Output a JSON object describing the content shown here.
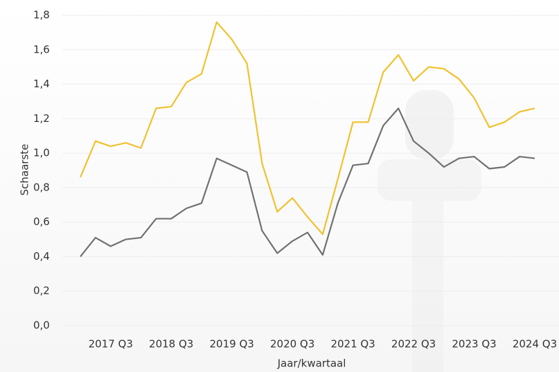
{
  "chart_data": {
    "type": "line",
    "ylabel": "Schaarste",
    "xlabel": "Jaar/kwartaal",
    "categories": [
      null,
      null,
      "2017 Q3",
      null,
      null,
      null,
      "2018 Q3",
      null,
      null,
      null,
      "2019 Q3",
      null,
      null,
      null,
      "2020 Q3",
      null,
      null,
      null,
      "2021 Q3",
      null,
      null,
      null,
      "2022 Q3",
      null,
      null,
      null,
      "2023 Q3",
      null,
      null,
      null,
      "2024 Q3"
    ],
    "series": [
      {
        "color": "#f2c12e",
        "values": [
          0.86,
          1.07,
          1.04,
          1.06,
          1.03,
          1.26,
          1.27,
          1.41,
          1.46,
          1.76,
          1.66,
          1.52,
          0.94,
          0.66,
          0.74,
          0.63,
          0.53,
          0.85,
          1.18,
          1.18,
          1.47,
          1.57,
          1.42,
          1.5,
          1.49,
          1.43,
          1.32,
          1.15,
          1.18,
          1.24,
          1.26
        ]
      },
      {
        "color": "#707070",
        "values": [
          0.4,
          0.51,
          0.46,
          0.5,
          0.51,
          0.62,
          0.62,
          0.68,
          0.71,
          0.97,
          0.93,
          0.89,
          0.55,
          0.42,
          0.49,
          0.54,
          0.41,
          0.71,
          0.93,
          0.94,
          1.16,
          1.26,
          1.07,
          1.0,
          0.92,
          0.97,
          0.98,
          0.91,
          0.92,
          0.98,
          0.97
        ]
      }
    ],
    "ylim": [
      0,
      1.8
    ],
    "yticks": [
      {
        "value": 0,
        "label": "0,0"
      },
      {
        "value": 0.2,
        "label": "0,2"
      },
      {
        "value": 0.4,
        "label": "0,4"
      },
      {
        "value": 0.6,
        "label": "0,6"
      },
      {
        "value": 0.8,
        "label": "0,8"
      },
      {
        "value": 1.0,
        "label": "1,0"
      },
      {
        "value": 1.2,
        "label": "1,2"
      },
      {
        "value": 1.4,
        "label": "1,4"
      },
      {
        "value": 1.6,
        "label": "1,6"
      },
      {
        "value": 1.8,
        "label": "1,8"
      }
    ],
    "grid": true
  }
}
